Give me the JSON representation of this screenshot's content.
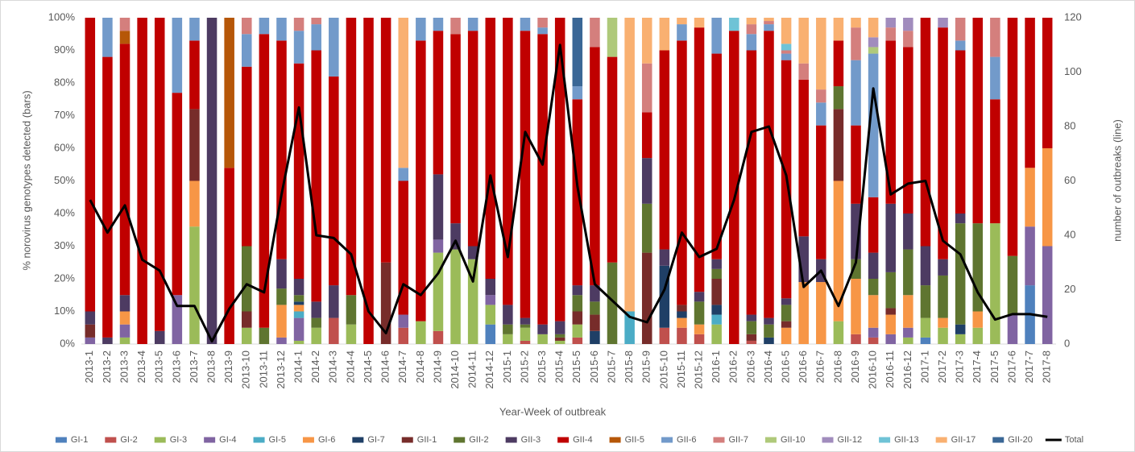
{
  "chart_data": {
    "type": "bar",
    "stacked": true,
    "x_label": "Year-Week of outbreak",
    "y_label": "% norovirus genotypes detected (bars)",
    "y2_label": "number of outbreaks (line)",
    "categories": [
      "2013-1",
      "2013-2",
      "2013-3",
      "2013-4",
      "2013-5",
      "2013-6",
      "2013-7",
      "2013-8",
      "2013-9",
      "2013-10",
      "2013-11",
      "2013-12",
      "2014-1",
      "2014-2",
      "2014-3",
      "2014-4",
      "2014-5",
      "2014-6",
      "2014-7",
      "2014-8",
      "2014-9",
      "2014-10",
      "2014-11",
      "2014-12",
      "2015-1",
      "2015-2",
      "2015-3",
      "2015-4",
      "2015-5",
      "2015-6",
      "2015-7",
      "2015-8",
      "2015-9",
      "2015-10",
      "2015-11",
      "2015-12",
      "2016-1",
      "2016-2",
      "2016-3",
      "2016-4",
      "2016-5",
      "2016-6",
      "2016-7",
      "2016-8",
      "2016-9",
      "2016-10",
      "2016-11",
      "2016-12",
      "2017-1",
      "2017-2",
      "2017-3",
      "2017-4",
      "2017-5",
      "2017-6",
      "2017-7",
      "2017-8"
    ],
    "ylim": [
      0,
      100
    ],
    "yticks": [
      {
        "value": 0,
        "label": "0%"
      },
      {
        "value": 10,
        "label": "10%"
      },
      {
        "value": 20,
        "label": "20%"
      },
      {
        "value": 30,
        "label": "30%"
      },
      {
        "value": 40,
        "label": "40%"
      },
      {
        "value": 50,
        "label": "50%"
      },
      {
        "value": 60,
        "label": "60%"
      },
      {
        "value": 70,
        "label": "70%"
      },
      {
        "value": 80,
        "label": "80%"
      },
      {
        "value": 90,
        "label": "90%"
      },
      {
        "value": 100,
        "label": "100%"
      }
    ],
    "y2lim": [
      0,
      120
    ],
    "y2ticks": [
      0,
      20,
      40,
      60,
      80,
      100,
      120
    ],
    "legend": "bottom",
    "series": [
      {
        "name": "GI-1",
        "color": "#4f81bd",
        "values": [
          0,
          0,
          0,
          0,
          0,
          0,
          0,
          0,
          0,
          0,
          0,
          0,
          0,
          0,
          0,
          0,
          0,
          0,
          0,
          0,
          0,
          0,
          0,
          6,
          0,
          0,
          0,
          0,
          0,
          0,
          0,
          0,
          0,
          0,
          0,
          0,
          0,
          0,
          0,
          0,
          0,
          0,
          0,
          0,
          0,
          0,
          0,
          0,
          2,
          0,
          0,
          0,
          0,
          0,
          18,
          0
        ]
      },
      {
        "name": "GI-2",
        "color": "#c0504d",
        "values": [
          0,
          0,
          0,
          0,
          0,
          0,
          0,
          0,
          0,
          0,
          0,
          0,
          0,
          0,
          8,
          0,
          0,
          0,
          5,
          0,
          4,
          0,
          0,
          0,
          0,
          1,
          0,
          0,
          2,
          0,
          0,
          0,
          0,
          5,
          5,
          3,
          0,
          0,
          1,
          0,
          0,
          0,
          0,
          0,
          3,
          2,
          0,
          0,
          0,
          0,
          0,
          0,
          0,
          0,
          0,
          0
        ]
      },
      {
        "name": "GI-3",
        "color": "#9bbb59",
        "values": [
          0,
          0,
          2,
          0,
          0,
          0,
          36,
          0,
          0,
          5,
          0,
          0,
          1,
          5,
          0,
          6,
          0,
          0,
          0,
          7,
          24,
          29,
          26,
          6,
          3,
          4,
          3,
          1,
          4,
          0,
          0,
          0,
          0,
          0,
          0,
          0,
          6,
          0,
          0,
          0,
          0,
          0,
          0,
          7,
          0,
          0,
          0,
          2,
          6,
          5,
          3,
          5,
          37,
          0,
          0,
          0
        ]
      },
      {
        "name": "GI-4",
        "color": "#8064a2",
        "values": [
          2,
          0,
          4,
          0,
          0,
          15,
          0,
          0,
          0,
          0,
          0,
          2,
          7,
          0,
          0,
          0,
          0,
          0,
          4,
          0,
          4,
          0,
          0,
          3,
          0,
          0,
          0,
          0,
          0,
          0,
          0,
          0,
          0,
          0,
          0,
          0,
          0,
          0,
          0,
          0,
          0,
          0,
          0,
          0,
          0,
          3,
          3,
          3,
          0,
          0,
          0,
          0,
          0,
          9,
          18,
          30
        ]
      },
      {
        "name": "GI-5",
        "color": "#4bacc6",
        "values": [
          0,
          0,
          0,
          0,
          0,
          0,
          0,
          0,
          0,
          0,
          0,
          0,
          2,
          0,
          0,
          0,
          0,
          0,
          0,
          0,
          0,
          0,
          0,
          0,
          0,
          0,
          0,
          0,
          0,
          0,
          0,
          10,
          0,
          0,
          0,
          0,
          3,
          0,
          0,
          0,
          0,
          0,
          0,
          0,
          0,
          0,
          0,
          0,
          0,
          0,
          0,
          0,
          0,
          0,
          0,
          0
        ]
      },
      {
        "name": "GI-6",
        "color": "#f79646",
        "values": [
          0,
          0,
          4,
          0,
          0,
          0,
          14,
          0,
          0,
          0,
          0,
          10,
          2,
          0,
          0,
          0,
          0,
          0,
          0,
          0,
          0,
          0,
          0,
          0,
          0,
          0,
          0,
          0,
          0,
          0,
          0,
          0,
          0,
          0,
          3,
          3,
          0,
          0,
          0,
          0,
          5,
          19,
          19,
          43,
          17,
          10,
          6,
          10,
          0,
          3,
          0,
          5,
          0,
          0,
          18,
          30
        ]
      },
      {
        "name": "GI-7",
        "color": "#1f3f66",
        "values": [
          0,
          0,
          0,
          0,
          0,
          0,
          0,
          0,
          0,
          0,
          0,
          0,
          1,
          0,
          0,
          0,
          0,
          0,
          0,
          0,
          0,
          0,
          0,
          0,
          0,
          0,
          0,
          0,
          0,
          4,
          0,
          0,
          0,
          19,
          2,
          0,
          3,
          0,
          0,
          2,
          0,
          0,
          0,
          0,
          0,
          0,
          0,
          0,
          0,
          0,
          3,
          0,
          0,
          0,
          0,
          0
        ]
      },
      {
        "name": "GII-1",
        "color": "#772c2a",
        "values": [
          4,
          0,
          0,
          0,
          0,
          0,
          22,
          0,
          0,
          5,
          0,
          0,
          0,
          0,
          0,
          0,
          0,
          25,
          0,
          0,
          0,
          0,
          0,
          0,
          0,
          0,
          0,
          1,
          4,
          5,
          0,
          0,
          28,
          0,
          2,
          0,
          8,
          0,
          2,
          0,
          2,
          0,
          0,
          22,
          0,
          0,
          2,
          0,
          0,
          0,
          0,
          0,
          0,
          0,
          0,
          0
        ]
      },
      {
        "name": "GII-2",
        "color": "#5f7530",
        "values": [
          0,
          0,
          0,
          0,
          0,
          0,
          0,
          0,
          0,
          20,
          5,
          5,
          2,
          3,
          0,
          9,
          0,
          0,
          0,
          0,
          0,
          0,
          0,
          0,
          3,
          1,
          0,
          1,
          5,
          4,
          25,
          0,
          15,
          0,
          0,
          7,
          3,
          0,
          4,
          4,
          5,
          0,
          0,
          7,
          6,
          5,
          11,
          14,
          10,
          13,
          31,
          27,
          0,
          18,
          0,
          0
        ]
      },
      {
        "name": "GII-3",
        "color": "#4d3b62",
        "values": [
          4,
          2,
          5,
          0,
          4,
          0,
          0,
          100,
          0,
          0,
          0,
          9,
          5,
          5,
          10,
          0,
          0,
          0,
          0,
          0,
          20,
          8,
          4,
          5,
          6,
          2,
          3,
          4,
          3,
          5,
          0,
          0,
          14,
          5,
          0,
          3,
          3,
          0,
          2,
          2,
          2,
          14,
          7,
          0,
          17,
          8,
          21,
          11,
          12,
          5,
          3,
          0,
          0,
          0,
          0,
          0
        ]
      },
      {
        "name": "GII-4",
        "color": "#c00000",
        "values": [
          90,
          86,
          77,
          100,
          96,
          62,
          21,
          0,
          54,
          55,
          90,
          67,
          66,
          77,
          64,
          85,
          100,
          75,
          41,
          86,
          44,
          58,
          66,
          80,
          88,
          88,
          89,
          93,
          57,
          73,
          63,
          0,
          14,
          61,
          81,
          81,
          63,
          96,
          81,
          88,
          73,
          48,
          41,
          14,
          24,
          17,
          50,
          51,
          70,
          71,
          50,
          63,
          38,
          73,
          46,
          40
        ]
      },
      {
        "name": "GII-5",
        "color": "#b65708",
        "values": [
          0,
          0,
          4,
          0,
          0,
          0,
          0,
          0,
          46,
          0,
          0,
          0,
          0,
          0,
          0,
          0,
          0,
          0,
          0,
          0,
          0,
          0,
          0,
          0,
          0,
          0,
          0,
          0,
          0,
          0,
          0,
          0,
          0,
          0,
          0,
          0,
          0,
          0,
          0,
          0,
          0,
          0,
          0,
          0,
          0,
          0,
          0,
          0,
          0,
          0,
          0,
          0,
          0,
          0,
          0,
          0
        ]
      },
      {
        "name": "GII-6",
        "color": "#729aca",
        "values": [
          0,
          12,
          0,
          0,
          0,
          23,
          7,
          0,
          0,
          10,
          5,
          7,
          10,
          8,
          18,
          0,
          0,
          0,
          4,
          7,
          4,
          0,
          4,
          0,
          0,
          4,
          2,
          0,
          4,
          0,
          0,
          0,
          0,
          0,
          5,
          0,
          11,
          0,
          5,
          2,
          2,
          0,
          7,
          0,
          20,
          44,
          0,
          0,
          0,
          0,
          3,
          0,
          13,
          0,
          0,
          0
        ]
      },
      {
        "name": "GII-7",
        "color": "#d47f7d",
        "values": [
          0,
          0,
          4,
          0,
          0,
          0,
          0,
          0,
          0,
          5,
          0,
          0,
          4,
          2,
          0,
          0,
          0,
          0,
          0,
          0,
          0,
          5,
          0,
          0,
          0,
          0,
          3,
          0,
          0,
          9,
          0,
          0,
          15,
          0,
          0,
          0,
          0,
          0,
          3,
          1,
          1,
          5,
          4,
          0,
          10,
          0,
          4,
          5,
          0,
          0,
          7,
          0,
          12,
          0,
          0,
          0
        ]
      },
      {
        "name": "GII-10",
        "color": "#afc97a",
        "values": [
          0,
          0,
          0,
          0,
          0,
          0,
          0,
          0,
          0,
          0,
          0,
          0,
          0,
          0,
          0,
          0,
          0,
          0,
          0,
          0,
          0,
          0,
          0,
          0,
          0,
          0,
          0,
          0,
          0,
          0,
          12,
          0,
          0,
          0,
          0,
          0,
          0,
          0,
          0,
          0,
          0,
          0,
          0,
          0,
          0,
          2,
          0,
          0,
          0,
          0,
          0,
          0,
          0,
          0,
          0,
          0
        ]
      },
      {
        "name": "GII-12",
        "color": "#a18cbd",
        "values": [
          0,
          0,
          0,
          0,
          0,
          0,
          0,
          0,
          0,
          0,
          0,
          0,
          0,
          0,
          0,
          0,
          0,
          0,
          0,
          0,
          0,
          0,
          0,
          0,
          0,
          0,
          0,
          0,
          0,
          0,
          0,
          0,
          0,
          0,
          0,
          0,
          0,
          0,
          0,
          0,
          0,
          0,
          0,
          0,
          0,
          3,
          3,
          4,
          0,
          3,
          0,
          0,
          0,
          0,
          0,
          0
        ]
      },
      {
        "name": "GII-13",
        "color": "#6fc3d6",
        "values": [
          0,
          0,
          0,
          0,
          0,
          0,
          0,
          0,
          0,
          0,
          0,
          0,
          0,
          0,
          0,
          0,
          0,
          0,
          0,
          0,
          0,
          0,
          0,
          0,
          0,
          0,
          0,
          0,
          0,
          0,
          0,
          0,
          0,
          0,
          0,
          0,
          0,
          4,
          0,
          0,
          2,
          0,
          0,
          0,
          0,
          0,
          0,
          0,
          0,
          0,
          0,
          0,
          0,
          0,
          0,
          0
        ]
      },
      {
        "name": "GII-17",
        "color": "#f9b071",
        "values": [
          0,
          0,
          0,
          0,
          0,
          0,
          0,
          0,
          0,
          0,
          0,
          0,
          0,
          0,
          0,
          0,
          0,
          0,
          46,
          0,
          0,
          0,
          0,
          0,
          0,
          0,
          0,
          0,
          0,
          0,
          0,
          90,
          14,
          10,
          2,
          3,
          0,
          0,
          2,
          1,
          8,
          14,
          22,
          7,
          3,
          6,
          0,
          0,
          0,
          0,
          0,
          0,
          0,
          0,
          0,
          0
        ]
      },
      {
        "name": "GII-20",
        "color": "#3a6796",
        "values": [
          0,
          0,
          0,
          0,
          0,
          0,
          0,
          0,
          0,
          0,
          0,
          0,
          0,
          0,
          0,
          0,
          0,
          0,
          0,
          0,
          0,
          0,
          0,
          0,
          0,
          0,
          0,
          0,
          21,
          0,
          0,
          0,
          0,
          0,
          0,
          0,
          0,
          0,
          0,
          0,
          0,
          0,
          0,
          0,
          0,
          0,
          0,
          0,
          0,
          0,
          0,
          0,
          0,
          0,
          0,
          0
        ]
      },
      {
        "name": "Total",
        "color": "#000000",
        "type": "line",
        "axis": "y2",
        "values": [
          53,
          41,
          51,
          31,
          27,
          14,
          14,
          1,
          13,
          22,
          19,
          55,
          87,
          40,
          39,
          33,
          12,
          4,
          22,
          18,
          26,
          38,
          23,
          62,
          32,
          78,
          66,
          110,
          58,
          22,
          16,
          10,
          8,
          20,
          41,
          32,
          35,
          53,
          78,
          80,
          62,
          21,
          27,
          14,
          30,
          94,
          55,
          59,
          60,
          38,
          33,
          19,
          9,
          11,
          11,
          10
        ]
      }
    ]
  }
}
